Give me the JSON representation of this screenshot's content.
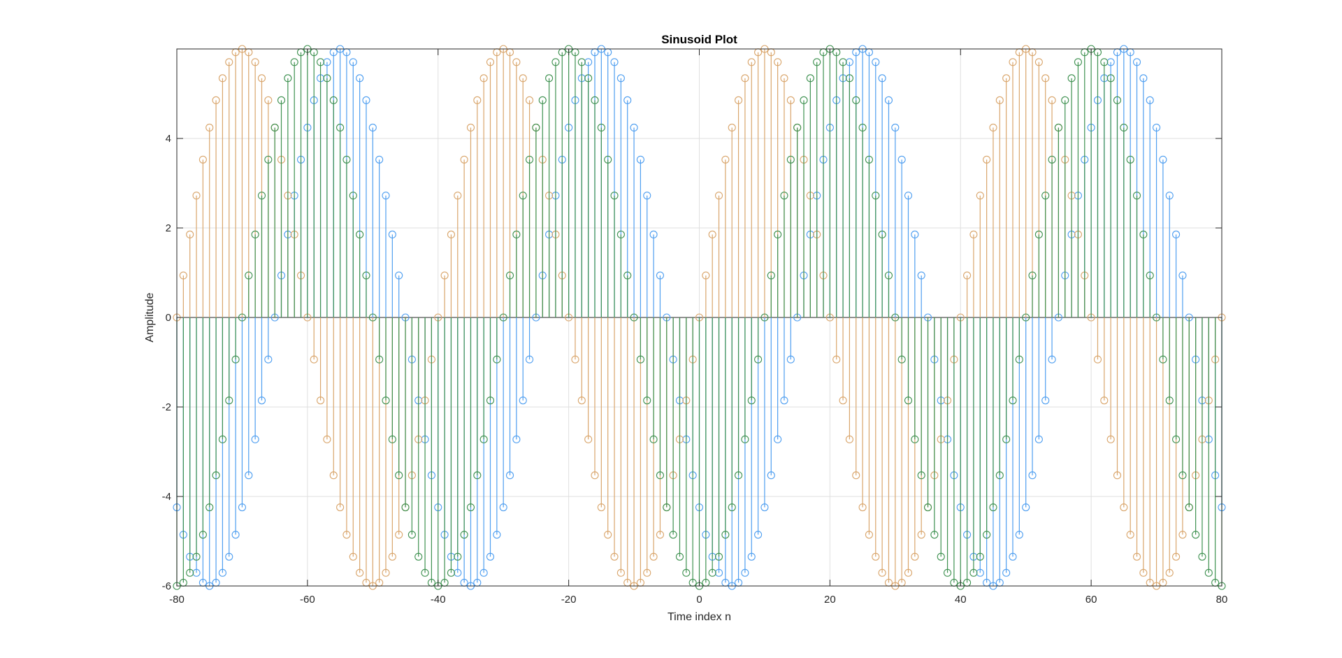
{
  "chart_data": {
    "type": "stem",
    "title": "Sinusoid Plot",
    "xlabel": "Time index n",
    "ylabel": "Amplitude",
    "xlim": [
      -80,
      80
    ],
    "ylim": [
      -6,
      6
    ],
    "xticks": [
      -80,
      -60,
      -40,
      -20,
      0,
      20,
      40,
      60,
      80
    ],
    "yticks": [
      -6,
      -4,
      -2,
      0,
      2,
      4
    ],
    "grid": true,
    "box": true,
    "marker": "open-circle",
    "n": {
      "start": -80,
      "end": 80,
      "step": 1
    },
    "series": [
      {
        "function": "6*cos(2*pi*n/40 + 3*pi/4)",
        "color": "#4E9EF0"
      },
      {
        "function": "6*sin(2*pi*n/40)",
        "color": "#D9A56B"
      },
      {
        "function": "6*cos(2*pi*n/40 + pi)",
        "color": "#3E9150"
      }
    ]
  }
}
